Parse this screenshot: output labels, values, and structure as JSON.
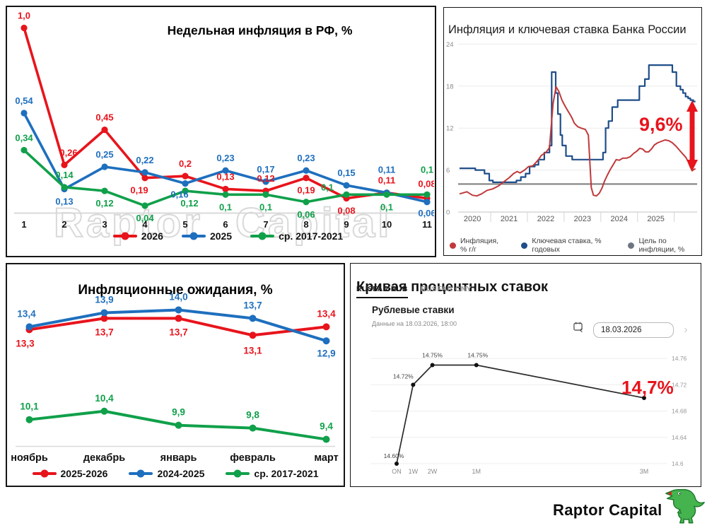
{
  "brand": {
    "logo_text": "Raptor Capital",
    "watermark": "Raptor Capital"
  },
  "colors": {
    "red": "#e8141c",
    "blue": "#1e6fbe",
    "green": "#10a04a",
    "inflation_red": "#c0393b",
    "keyrate_navy": "#1f4e8a",
    "target_gray": "#6d7680",
    "curve_black": "#2b2b2b",
    "annotation_red": "#e8141c"
  },
  "rusfar": {
    "tabs": [
      "RUSFAR RUB",
      "RUSFAR CNY"
    ],
    "subtitle": "Рублевые ставки",
    "note": "Данные на 18.03.2026, 18:00",
    "date": "18.03.2026",
    "prev_icon": "‹",
    "next_icon": "›"
  },
  "chart_data": [
    {
      "type": "line",
      "title": "Недельная инфляция в РФ, %",
      "categories": [
        "1",
        "2",
        "3",
        "4",
        "5",
        "6",
        "7",
        "8",
        "9",
        "10",
        "11"
      ],
      "ylim": [
        0,
        1.05
      ],
      "grid": false,
      "legend_position": "bottom",
      "series": [
        {
          "name": "2026",
          "color": "#e8141c",
          "values": [
            1.0,
            0.26,
            0.45,
            0.19,
            0.2,
            0.13,
            0.12,
            0.19,
            0.08,
            0.11,
            0.08
          ],
          "labels": [
            "1,0",
            "0,26",
            "0,45",
            "0,19",
            "0,2",
            "0,13",
            "0,12",
            "0,19",
            "0,08",
            "0,11",
            "0,08"
          ],
          "label_dy": [
            -13,
            -13,
            -13,
            22,
            -13,
            -13,
            -13,
            22,
            22,
            -13,
            -16
          ],
          "label_dx": [
            0,
            6,
            0,
            -8,
            0,
            0,
            0,
            0,
            0,
            0,
            0
          ]
        },
        {
          "name": "2025",
          "color": "#1e6fbe",
          "values": [
            0.54,
            0.13,
            0.25,
            0.22,
            0.16,
            0.23,
            0.17,
            0.23,
            0.15,
            0.11,
            0.06
          ],
          "labels": [
            "0,54",
            "0,13",
            "0,25",
            "0,22",
            "0,16",
            "0,23",
            "0,17",
            "0,23",
            "0,15",
            "0,11",
            "0,06"
          ],
          "label_dy": [
            -13,
            22,
            -13,
            -13,
            20,
            -13,
            -13,
            -13,
            -13,
            -28,
            20
          ],
          "label_dx": [
            0,
            0,
            0,
            0,
            -8,
            0,
            0,
            0,
            0,
            0,
            0
          ]
        },
        {
          "name": "ср. 2017-2021",
          "color": "#10a04a",
          "values": [
            0.34,
            0.14,
            0.12,
            0.04,
            0.12,
            0.1,
            0.1,
            0.06,
            0.1,
            0.1,
            0.1
          ],
          "labels": [
            "0,34",
            "0,14",
            "0,12",
            "0,04",
            "0,12",
            "0,1",
            "0,1",
            "0,06",
            "0,1",
            "0,1",
            "0,1"
          ],
          "label_dy": [
            -13,
            -13,
            22,
            22,
            22,
            22,
            22,
            22,
            -6,
            22,
            -31
          ],
          "label_dx": [
            0,
            0,
            0,
            0,
            6,
            0,
            0,
            0,
            -27,
            0,
            0
          ]
        }
      ]
    },
    {
      "type": "line",
      "title": "Инфляция и ключевая ставка Банка России",
      "annotation": "9,6%",
      "yticks": [
        0,
        6,
        12,
        18,
        24
      ],
      "xticks": [
        "2020",
        "2021",
        "2022",
        "2023",
        "2024",
        "2025"
      ],
      "ylim": [
        0,
        25
      ],
      "x_range": [
        2019.65,
        2026.08
      ],
      "target_value": 4,
      "grid": true,
      "legend_position": "bottom",
      "series": [
        {
          "name": "Инфляция, % г/г",
          "color": "#c0393b",
          "style": "line",
          "points": [
            [
              2019.65,
              2.6
            ],
            [
              2019.85,
              2.9
            ],
            [
              2020.0,
              2.4
            ],
            [
              2020.12,
              2.3
            ],
            [
              2020.25,
              2.6
            ],
            [
              2020.4,
              3.1
            ],
            [
              2020.55,
              3.3
            ],
            [
              2020.7,
              3.7
            ],
            [
              2020.85,
              4.3
            ],
            [
              2021.0,
              4.9
            ],
            [
              2021.12,
              5.5
            ],
            [
              2021.22,
              5.8
            ],
            [
              2021.3,
              5.6
            ],
            [
              2021.42,
              6.0
            ],
            [
              2021.53,
              6.5
            ],
            [
              2021.64,
              6.6
            ],
            [
              2021.72,
              7.0
            ],
            [
              2021.8,
              7.5
            ],
            [
              2021.88,
              8.1
            ],
            [
              2022.0,
              8.5
            ],
            [
              2022.1,
              9.2
            ],
            [
              2022.2,
              15.5
            ],
            [
              2022.28,
              17.9
            ],
            [
              2022.36,
              17.2
            ],
            [
              2022.44,
              16.0
            ],
            [
              2022.53,
              15.1
            ],
            [
              2022.62,
              14.3
            ],
            [
              2022.7,
              13.6
            ],
            [
              2022.78,
              12.7
            ],
            [
              2022.87,
              12.2
            ],
            [
              2022.96,
              12.0
            ],
            [
              2023.08,
              11.8
            ],
            [
              2023.16,
              11.0
            ],
            [
              2023.24,
              3.5
            ],
            [
              2023.3,
              2.4
            ],
            [
              2023.38,
              2.3
            ],
            [
              2023.46,
              2.7
            ],
            [
              2023.53,
              3.4
            ],
            [
              2023.6,
              4.4
            ],
            [
              2023.68,
              5.3
            ],
            [
              2023.76,
              6.1
            ],
            [
              2023.84,
              6.8
            ],
            [
              2023.92,
              7.5
            ],
            [
              2024.0,
              7.4
            ],
            [
              2024.1,
              7.7
            ],
            [
              2024.2,
              7.7
            ],
            [
              2024.3,
              7.9
            ],
            [
              2024.4,
              8.4
            ],
            [
              2024.48,
              8.7
            ],
            [
              2024.56,
              9.1
            ],
            [
              2024.64,
              9.0
            ],
            [
              2024.72,
              8.6
            ],
            [
              2024.8,
              8.6
            ],
            [
              2024.88,
              9.0
            ],
            [
              2024.96,
              9.6
            ],
            [
              2025.05,
              9.9
            ],
            [
              2025.15,
              10.1
            ],
            [
              2025.25,
              10.3
            ],
            [
              2025.35,
              10.2
            ],
            [
              2025.45,
              9.9
            ],
            [
              2025.55,
              9.4
            ],
            [
              2025.65,
              8.8
            ],
            [
              2025.75,
              8.2
            ],
            [
              2025.82,
              7.8
            ],
            [
              2025.88,
              7.2
            ],
            [
              2025.94,
              6.4
            ],
            [
              2025.99,
              5.9
            ],
            [
              2026.04,
              6.1
            ],
            [
              2026.08,
              6.2
            ]
          ]
        },
        {
          "name": "Ключевая ставка, % годовых",
          "color": "#1f4e8a",
          "style": "step",
          "points": [
            [
              2019.65,
              6.25
            ],
            [
              2020.08,
              6.0
            ],
            [
              2020.33,
              5.5
            ],
            [
              2020.46,
              4.5
            ],
            [
              2020.56,
              4.25
            ],
            [
              2021.2,
              4.5
            ],
            [
              2021.32,
              5.0
            ],
            [
              2021.45,
              5.5
            ],
            [
              2021.56,
              6.5
            ],
            [
              2021.7,
              6.75
            ],
            [
              2021.8,
              7.5
            ],
            [
              2021.96,
              8.5
            ],
            [
              2022.1,
              9.5
            ],
            [
              2022.16,
              20
            ],
            [
              2022.27,
              17
            ],
            [
              2022.33,
              14
            ],
            [
              2022.4,
              11
            ],
            [
              2022.45,
              9.5
            ],
            [
              2022.55,
              8
            ],
            [
              2022.72,
              7.5
            ],
            [
              2023.56,
              8.5
            ],
            [
              2023.63,
              12
            ],
            [
              2023.71,
              13
            ],
            [
              2023.81,
              15
            ],
            [
              2023.96,
              16
            ],
            [
              2024.55,
              18
            ],
            [
              2024.7,
              19
            ],
            [
              2024.81,
              21
            ],
            [
              2025.45,
              20
            ],
            [
              2025.56,
              18
            ],
            [
              2025.67,
              17.5
            ],
            [
              2025.74,
              17
            ],
            [
              2025.81,
              16.5
            ],
            [
              2025.88,
              16.25
            ],
            [
              2025.94,
              16
            ],
            [
              2026.02,
              15.8
            ],
            [
              2026.08,
              15.8
            ]
          ]
        },
        {
          "name": "Цель по инфляции, %",
          "color": "#6d7680",
          "style": "const",
          "value": 4
        }
      ]
    },
    {
      "type": "line",
      "title": "Инфляционные ожидания, %",
      "categories": [
        "ноябрь",
        "декабрь",
        "январь",
        "февраль",
        "март"
      ],
      "ylim": [
        9.15,
        14.6
      ],
      "grid": false,
      "legend_position": "bottom",
      "series": [
        {
          "name": "2025-2026",
          "color": "#e8141c",
          "values": [
            13.3,
            13.7,
            13.7,
            13.1,
            13.4
          ],
          "labels": [
            "13,3",
            "13,7",
            "13,7",
            "13,1",
            "13,4"
          ],
          "label_dy": [
            24,
            24,
            24,
            26,
            -14
          ],
          "label_dx": [
            -6,
            0,
            0,
            0,
            0
          ]
        },
        {
          "name": "2024-2025",
          "color": "#1e6fbe",
          "values": [
            13.4,
            13.9,
            14.0,
            13.7,
            12.9
          ],
          "labels": [
            "13,4",
            "13,9",
            "14,0",
            "13,7",
            "12,9"
          ],
          "label_dy": [
            -14,
            -14,
            -14,
            -14,
            22
          ],
          "label_dx": [
            -4,
            0,
            0,
            0,
            0
          ]
        },
        {
          "name": "ср. 2017-2021",
          "color": "#10a04a",
          "values": [
            10.1,
            10.4,
            9.9,
            9.8,
            9.4
          ],
          "labels": [
            "10,1",
            "10,4",
            "9,9",
            "9,8",
            "9,4"
          ],
          "label_dy": [
            -14,
            -14,
            -14,
            -14,
            -14
          ],
          "label_dx": [
            0,
            0,
            0,
            0,
            0
          ]
        }
      ]
    },
    {
      "type": "line",
      "title": "Кривая процентных ставок",
      "annotation": "14,7%",
      "terms": [
        "ON",
        "1W",
        "2W",
        "1M",
        "3M"
      ],
      "days": [
        1,
        7,
        14,
        30,
        91
      ],
      "values": [
        14.6,
        14.72,
        14.75,
        14.75,
        14.7
      ],
      "point_labels": [
        "14.60%",
        "14.72%",
        "14.75%",
        "14.75%",
        ""
      ],
      "label_dx": [
        -4,
        -14,
        0,
        2,
        0
      ],
      "label_dy": [
        -8,
        -9,
        -11,
        -11,
        0
      ],
      "yticks": [
        14.6,
        14.64,
        14.68,
        14.72,
        14.76
      ],
      "ytick_labels": [
        "14.6",
        "14.64",
        "14.68",
        "14.72",
        "14.76"
      ],
      "grid": true,
      "line_color": "#2b2b2b"
    }
  ]
}
